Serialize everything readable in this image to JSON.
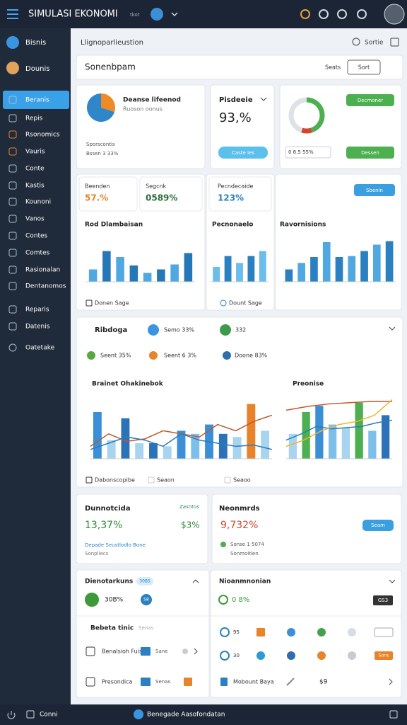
{
  "topbar": {
    "title": "SIMULASI EKONOMI",
    "subtitle": "tkot"
  },
  "sidebar": {
    "profile": [
      "Bisnis",
      "Dounis"
    ],
    "menu": [
      "Beranis",
      "Repis",
      "Rsonomics",
      "Vauris",
      "Conte",
      "Kastis",
      "Kounoni",
      "Vanos",
      "Contes",
      "Comtes",
      "Rasionalan",
      "Dentanomos"
    ],
    "menu2": [
      "Reparis",
      "Datenis"
    ],
    "footer": "Oatetake"
  },
  "header": {
    "title": "Llignoparlieustion",
    "action": "Sortie"
  },
  "toolbar": {
    "title": "Sonenbpam",
    "buttons": [
      "Seats",
      "Sort"
    ]
  },
  "summary": {
    "pie_card": {
      "title": "Deanse lifeenod",
      "subtitle": "Ruoson oonus",
      "note1": "Sporscontis",
      "note2": "Bssen 3 33%",
      "slices": [
        {
          "value": 30,
          "color": "#f08a24"
        },
        {
          "value": 70,
          "color": "#2f86c9"
        }
      ]
    },
    "kpi_card": {
      "title": "Pisdeeie",
      "value": "93,%",
      "button": "Caste Ies"
    },
    "donut_card": {
      "slices": [
        {
          "value": 45,
          "color": "#4caf50"
        },
        {
          "value": 10,
          "color": "#d4452c"
        },
        {
          "value": 45,
          "color": "#dde2e8"
        }
      ],
      "buttons": [
        "Decmoner",
        "Dessen"
      ],
      "note": "0 8.5 55%"
    }
  },
  "charts": [
    {
      "stat_label": "Beenden",
      "stat_value": "57.%",
      "stat2_label": "Segcnk",
      "stat2_value": "0589%",
      "title": "Rod Dlambaisan",
      "footer": "Donen Sage",
      "values": [
        25,
        62,
        50,
        33,
        18,
        25,
        35,
        58
      ],
      "colors": [
        "#4fa8e0",
        "#2677b8"
      ]
    },
    {
      "stat_label": "Pecndecaide",
      "stat_value": "123%",
      "title": "Pecnonaelo",
      "footer": "Dount Sage",
      "values": [
        30,
        52,
        38,
        52,
        62
      ],
      "colors": [
        "#6cbcec",
        "#2b80c2"
      ]
    },
    {
      "button": "Sbenin",
      "title": "Ravornisions",
      "values": [
        25,
        38,
        50,
        80,
        50,
        52,
        62,
        75,
        82
      ],
      "colors": [
        "#2b80c2",
        "#4fa8e0"
      ]
    }
  ],
  "trend": {
    "title": "Ribdoga",
    "badges": [
      {
        "label": "Semo 33%",
        "color": "#3a95e0"
      },
      {
        "label": "332",
        "color": "#3c9a4a"
      }
    ],
    "legend": [
      {
        "label": "Seent 35%",
        "color": "#5aa83c"
      },
      {
        "label": "Seent 6 3%",
        "color": "#e8832a"
      },
      {
        "label": "Doone 83%",
        "color": "#2f6db0"
      }
    ],
    "left": {
      "title": "Brainet Ohakinebok",
      "bars": [
        75,
        30,
        65,
        25,
        25,
        20,
        45,
        40,
        55,
        40,
        35,
        88,
        45
      ],
      "bar_colors": [
        "#3a8fd6",
        "#a8d4f0",
        "#2b72b8",
        "#a8d4f0",
        "#2b72b8",
        "#a8d4f0",
        "#3a8fd6",
        "#7cc0ea",
        "#3a8fd6",
        "#2b72b8",
        "#a8d4f0",
        "#e8832a",
        "#a8d4f0"
      ],
      "lines": [
        {
          "color": "#c4572a",
          "values": [
            20,
            40,
            28,
            32,
            45,
            40,
            35,
            55,
            45,
            60,
            70
          ]
        },
        {
          "color": "#2b7bbf",
          "values": [
            15,
            25,
            35,
            30,
            20,
            40,
            30,
            25,
            20,
            22,
            15
          ]
        }
      ]
    },
    "right": {
      "title": "Preonise",
      "bars": [
        40,
        75,
        85,
        55,
        50,
        90,
        45,
        70
      ],
      "bar_colors": [
        "#a8d4f0",
        "#4caf50",
        "#3a8fd6",
        "#7cc0ea",
        "#a8d4f0",
        "#4caf50",
        "#7cc0ea",
        "#2b72b8"
      ],
      "lines": [
        {
          "color": "#c4572a",
          "values": [
            78,
            84,
            88,
            90,
            92,
            92
          ]
        },
        {
          "color": "#2b7bbf",
          "values": [
            30,
            40,
            52,
            48,
            50,
            52,
            58,
            62
          ]
        },
        {
          "color": "#f0b429",
          "values": [
            20,
            30,
            45,
            55,
            60,
            70,
            95
          ]
        }
      ]
    },
    "footer": [
      "Dabonscopibe",
      "Seaon",
      "Seaoo"
    ]
  },
  "stats": [
    {
      "title": "Dunnotcida",
      "tag": "Zasntos",
      "value": "13,37%",
      "value2": "$3%",
      "note1": "Depade Seustlodlo Bone",
      "note2": "Sonpliecs"
    },
    {
      "title": "Neonmrds",
      "value": "9,732%",
      "button": "Seam",
      "note1": "Sonse 1 5074",
      "note2": "Sonmoitlen"
    }
  ],
  "lists": {
    "left": {
      "title": "Dienotarkuns",
      "badge": "30BS",
      "value": "30B%",
      "chip": "S8",
      "section": "Bebeta tinic",
      "section_note": "Senas",
      "rows": [
        {
          "label": "Benalsioh Fuis",
          "note": "Sane"
        },
        {
          "label": "Presondica",
          "note": "Senas"
        }
      ]
    },
    "right": {
      "title": "Nioanmnonian",
      "value": "0 8%",
      "badge": "GS3",
      "rows": [
        {
          "label": "95",
          "dots": [
            "#e8832a",
            "#3a8fd6",
            "#44a04a",
            "#d8dde3"
          ]
        },
        {
          "label": "30",
          "dots": [
            "#2b9bd0",
            "#2f6db0",
            "#e8832a",
            "#c7ccd3"
          ],
          "badge": "Sons"
        }
      ],
      "footer": "Mobount Baya",
      "amount": "$9"
    }
  },
  "bottombar": {
    "left": "Conni",
    "center": "Benegade Aasofondatan"
  }
}
